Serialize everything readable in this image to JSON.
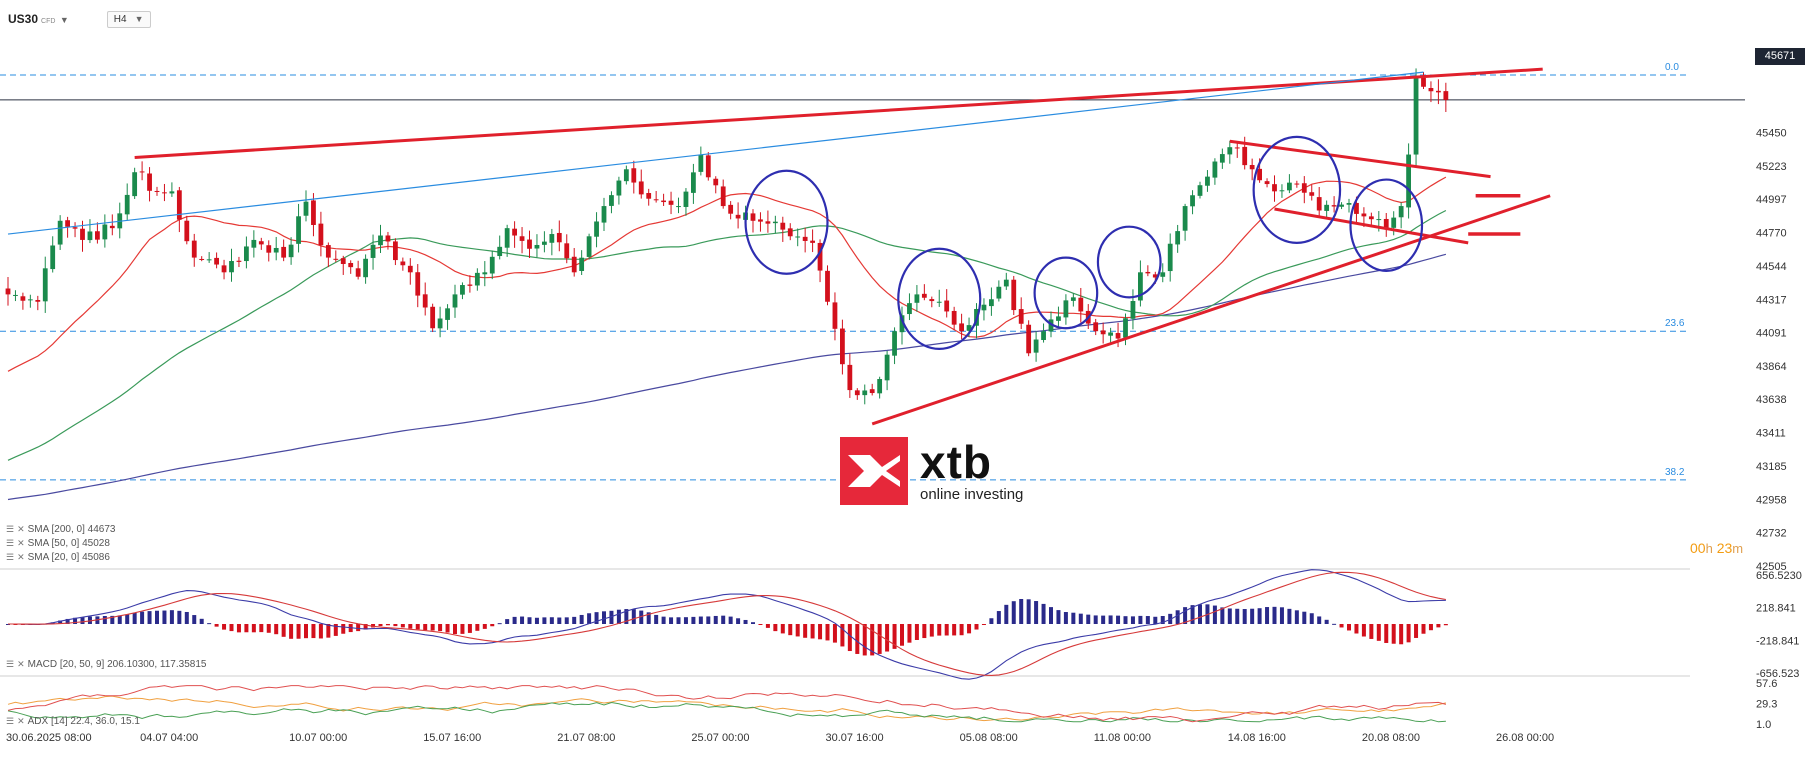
{
  "header": {
    "symbol": "US30",
    "symbol_type": "CFD",
    "timeframe": "H4"
  },
  "current_price_label": "45671",
  "indicator_legend": {
    "sma200": "SMA [200, 0]  44673",
    "sma50": "SMA [50, 0]  45028",
    "sma20": "SMA [20, 0]  45086",
    "macd": "MACD [20, 50, 9]  206.10300,  117.35815",
    "adx": "ADX [14]  22.4,  36.0,  15.1"
  },
  "logo": {
    "word": "xtb",
    "tagline": "online investing"
  },
  "countdown": {
    "h": "00",
    "h_unit": "h",
    "m": "23",
    "m_unit": "m"
  },
  "colors": {
    "bull": "#1a8a4c",
    "bear": "#d3101c",
    "sma20": "#e53935",
    "sma50": "#3a9a5a",
    "sma200": "#4a4aa0",
    "trend": "#e0202c",
    "circle": "#2e2eb0",
    "fib": "#2a8ce0",
    "macd_line": "#3c3ca8",
    "signal_line": "#d63a3a"
  },
  "chart_data": {
    "type": "candlestick",
    "symbol": "US30",
    "timeframe": "H4",
    "ylim": [
      42505,
      46180
    ],
    "y_ticks": [
      45450,
      45223,
      44997,
      44770,
      44544,
      44317,
      44091,
      43864,
      43638,
      43411,
      43185,
      42958,
      42732,
      42505
    ],
    "x_ticks": [
      {
        "label": "30.06.2025  08:00",
        "i": 0
      },
      {
        "label": "04.07  04:00",
        "i": 18
      },
      {
        "label": "10.07  00:00",
        "i": 38
      },
      {
        "label": "15.07  16:00",
        "i": 56
      },
      {
        "label": "21.07  08:00",
        "i": 74
      },
      {
        "label": "25.07  00:00",
        "i": 92
      },
      {
        "label": "30.07  16:00",
        "i": 110
      },
      {
        "label": "05.08  08:00",
        "i": 128
      },
      {
        "label": "11.08  00:00",
        "i": 146
      },
      {
        "label": "14.08  16:00",
        "i": 164
      },
      {
        "label": "20.08  08:00",
        "i": 182
      },
      {
        "label": "26.08  00:00",
        "i": 200
      }
    ],
    "last_price": 45671,
    "fib_levels": [
      {
        "label": "0.0",
        "value": 45840
      },
      {
        "label": "23.6",
        "value": 44100
      },
      {
        "label": "38.2",
        "value": 43090
      }
    ],
    "close_key": [
      [
        0,
        44350
      ],
      [
        4,
        44300
      ],
      [
        7,
        44850
      ],
      [
        10,
        44720
      ],
      [
        14,
        44800
      ],
      [
        17,
        45180
      ],
      [
        20,
        45050
      ],
      [
        22,
        45050
      ],
      [
        25,
        44600
      ],
      [
        29,
        44500
      ],
      [
        33,
        44720
      ],
      [
        37,
        44600
      ],
      [
        40,
        44980
      ],
      [
        43,
        44600
      ],
      [
        47,
        44470
      ],
      [
        50,
        44750
      ],
      [
        54,
        44500
      ],
      [
        57,
        44120
      ],
      [
        60,
        44350
      ],
      [
        64,
        44500
      ],
      [
        67,
        44800
      ],
      [
        70,
        44660
      ],
      [
        73,
        44760
      ],
      [
        76,
        44500
      ],
      [
        80,
        44950
      ],
      [
        83,
        45200
      ],
      [
        86,
        45000
      ],
      [
        90,
        44950
      ],
      [
        93,
        45300
      ],
      [
        96,
        44950
      ],
      [
        100,
        44850
      ],
      [
        104,
        44790
      ],
      [
        108,
        44700
      ],
      [
        110,
        44300
      ],
      [
        113,
        43700
      ],
      [
        116,
        43680
      ],
      [
        119,
        44100
      ],
      [
        122,
        44350
      ],
      [
        125,
        44300
      ],
      [
        128,
        44100
      ],
      [
        131,
        44280
      ],
      [
        134,
        44450
      ],
      [
        137,
        43950
      ],
      [
        140,
        44180
      ],
      [
        143,
        44330
      ],
      [
        146,
        44100
      ],
      [
        149,
        44050
      ],
      [
        152,
        44500
      ],
      [
        155,
        44500
      ],
      [
        158,
        44950
      ],
      [
        161,
        45150
      ],
      [
        164,
        45350
      ],
      [
        167,
        45200
      ],
      [
        170,
        45050
      ],
      [
        173,
        45100
      ],
      [
        176,
        44920
      ],
      [
        179,
        44960
      ],
      [
        182,
        44880
      ],
      [
        185,
        44800
      ],
      [
        187,
        44950
      ],
      [
        188,
        45300
      ],
      [
        189,
        45820
      ],
      [
        191,
        45730
      ],
      [
        193,
        45671
      ]
    ],
    "trendlines": [
      {
        "name": "upper rising",
        "x": [
          17,
          206
        ],
        "y": [
          45280,
          45880
        ]
      },
      {
        "name": "support",
        "x": [
          116,
          207
        ],
        "y": [
          43470,
          45020
        ]
      },
      {
        "name": "flag top",
        "x": [
          164,
          199
        ],
        "y": [
          45390,
          45150
        ]
      },
      {
        "name": "flag bottom",
        "x": [
          170,
          196
        ],
        "y": [
          44930,
          44700
        ]
      },
      {
        "name": "long blue",
        "x": [
          0,
          190
        ],
        "y": [
          44760,
          45860
        ]
      }
    ],
    "marks": [
      {
        "x": [
          197,
          203
        ],
        "y": 45020
      },
      {
        "x": [
          196,
          203
        ],
        "y": 44760
      }
    ],
    "circles": [
      {
        "x": 104.5,
        "y": 44840,
        "rx": 5.5,
        "ry": 350
      },
      {
        "x": 125,
        "y": 44320,
        "rx": 5.5,
        "ry": 340
      },
      {
        "x": 142,
        "y": 44360,
        "rx": 4.2,
        "ry": 240
      },
      {
        "x": 150.5,
        "y": 44570,
        "rx": 4.2,
        "ry": 240
      },
      {
        "x": 173,
        "y": 45060,
        "rx": 5.8,
        "ry": 360
      },
      {
        "x": 185,
        "y": 44820,
        "rx": 4.8,
        "ry": 310
      }
    ],
    "macd": {
      "ylim": [
        -656.523,
        656.523
      ],
      "y_ticks": [
        656.523,
        218.841,
        -218.841,
        -656.523
      ]
    },
    "adx": {
      "ylim": [
        1.0,
        57.6
      ],
      "y_ticks": [
        57.6,
        29.3,
        1.0
      ]
    }
  }
}
